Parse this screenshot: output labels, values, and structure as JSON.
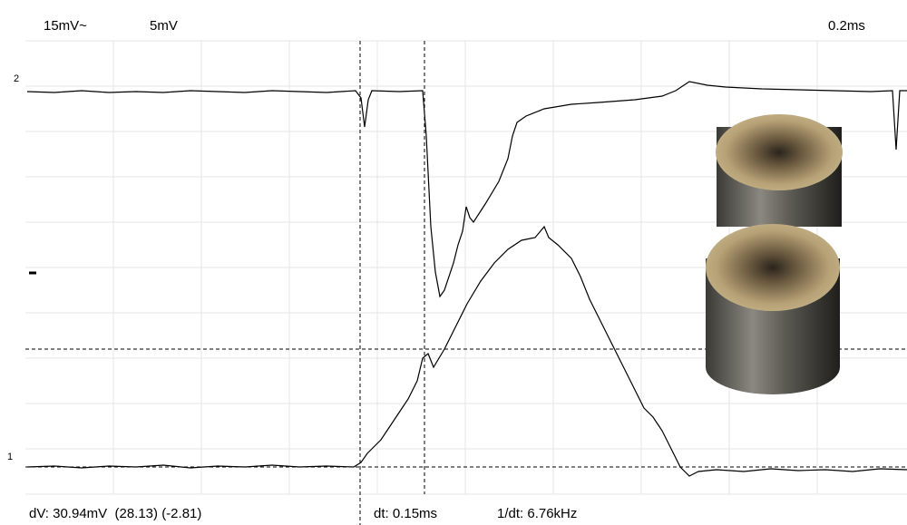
{
  "header": {
    "channel_2_scale": "15mV~",
    "channel_1_scale": "5mV",
    "time_scale": "0.2ms"
  },
  "channel_markers": {
    "channel_2": "2",
    "channel_1": "1"
  },
  "readout": {
    "dv": "dV: 30.94mV  (28.13) (-2.81)",
    "dt": "dt: 0.15ms",
    "inverse_dt": "1/dt: 6.76kHz"
  }
}
